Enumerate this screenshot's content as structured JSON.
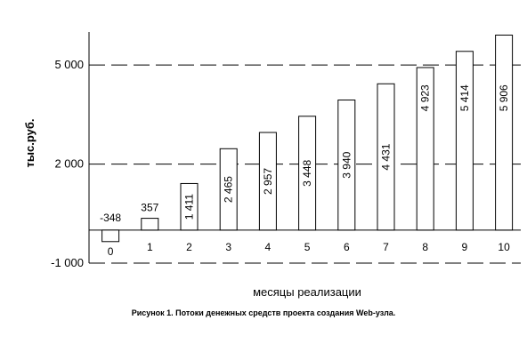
{
  "chart_data": {
    "type": "bar",
    "categories": [
      "0",
      "1",
      "2",
      "3",
      "4",
      "5",
      "6",
      "7",
      "8",
      "9",
      "10"
    ],
    "values": [
      -348,
      357,
      1411,
      2465,
      2957,
      3448,
      3940,
      4431,
      4923,
      5414,
      5906
    ],
    "value_labels": [
      "-348",
      "357",
      "1 411",
      "2 465",
      "2 957",
      "3 448",
      "3 940",
      "4 431",
      "4 923",
      "5 414",
      "5 906"
    ],
    "xlabel": "месяцы реализации",
    "ylabel": "тыс.руб.",
    "yticks": [
      -1000,
      2000,
      5000
    ],
    "ytick_labels": [
      "-1 000",
      "2 000",
      "5 000"
    ],
    "ylim": [
      -1000,
      6000
    ],
    "grid": "horizontal dashed",
    "bar_fill": "#ffffff",
    "bar_stroke": "#000000"
  },
  "caption": "Рисунок 1. Потоки денежных средств проекта создания Web-узла."
}
